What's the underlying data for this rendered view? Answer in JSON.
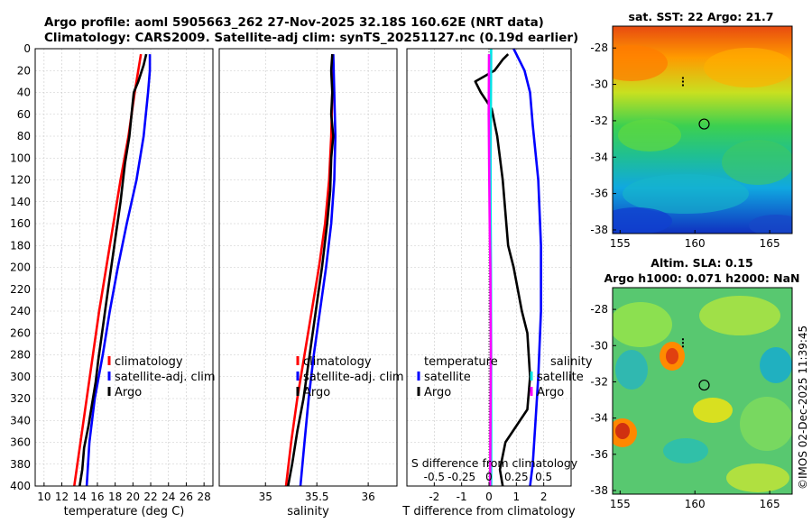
{
  "titles": {
    "line1": "Argo profile: aoml 5905663_262 27-Nov-2025 32.18S 160.62E (NRT data)",
    "line2": "Climatology: CARS2009. Satellite-adj clim: synTS_20251127.nc (0.19d earlier)",
    "sst": "sat. SST: 22 Argo: 21.7",
    "sla1": "Altim. SLA: 0.15",
    "sla2": "Argo h1000: 0.071 h2000: NaN",
    "stamp": "©IMOS 02-Dec-2025 11:39:45"
  },
  "colors": {
    "clim": "#ff0000",
    "sat": "#0000ff",
    "argo": "#000000",
    "tdiff": "#00e5e5",
    "sdiff": "#ff00ff"
  },
  "chart_data": [
    {
      "type": "line",
      "title": "",
      "xlabel": "temperature (deg C)",
      "ylabel": "",
      "xlim": [
        9,
        29
      ],
      "ylim": [
        400,
        0
      ],
      "xticks": [
        "10",
        "12",
        "14",
        "16",
        "18",
        "20",
        "22",
        "24",
        "26",
        "28"
      ],
      "yticks": [
        "0",
        "20",
        "40",
        "60",
        "80",
        "100",
        "120",
        "140",
        "160",
        "180",
        "200",
        "220",
        "240",
        "260",
        "280",
        "300",
        "320",
        "340",
        "360",
        "380",
        "400"
      ],
      "legend": [
        "climatology",
        "satellite-adj. clim",
        "Argo"
      ],
      "series": [
        {
          "name": "climatology",
          "color": "#ff0000",
          "x": [
            20.9,
            20.2,
            19.5,
            18.6,
            17.8,
            17.0,
            16.2,
            15.5,
            14.8,
            14.1,
            13.4
          ],
          "y": [
            5,
            40,
            80,
            120,
            160,
            200,
            240,
            280,
            320,
            360,
            400
          ]
        },
        {
          "name": "satellite-adj. clim",
          "color": "#0000ff",
          "x": [
            21.9,
            21.9,
            21.7,
            21.2,
            20.4,
            19.3,
            18.3,
            17.4,
            16.6,
            15.7,
            15.1,
            14.8
          ],
          "y": [
            5,
            20,
            40,
            80,
            120,
            160,
            200,
            240,
            280,
            320,
            360,
            400
          ]
        },
        {
          "name": "Argo",
          "color": "#000000",
          "x": [
            21.5,
            21.2,
            20.6,
            20.1,
            19.9,
            19.6,
            19.1,
            18.6,
            17.9,
            17.2,
            16.7,
            16.1,
            15.8,
            15.4,
            15.0,
            14.5,
            14.3,
            14.0
          ],
          "y": [
            5,
            15,
            30,
            40,
            55,
            80,
            105,
            140,
            180,
            220,
            250,
            285,
            305,
            325,
            345,
            365,
            385,
            400
          ]
        }
      ]
    },
    {
      "type": "line",
      "xlabel": "salinity",
      "xlim": [
        34.55,
        36.28
      ],
      "ylim": [
        400,
        0
      ],
      "xticks": [
        "35",
        "35.5",
        "36"
      ],
      "legend": [
        "climatology",
        "satellite-adj. clim",
        "Argo"
      ],
      "series": [
        {
          "name": "climatology",
          "color": "#ff0000",
          "x": [
            35.65,
            35.65,
            35.64,
            35.62,
            35.58,
            35.52,
            35.45,
            35.38,
            35.31,
            35.25,
            35.2
          ],
          "y": [
            5,
            40,
            80,
            120,
            160,
            200,
            240,
            280,
            320,
            360,
            400
          ]
        },
        {
          "name": "satellite-adj. clim",
          "color": "#0000ff",
          "x": [
            35.66,
            35.67,
            35.68,
            35.67,
            35.64,
            35.59,
            35.53,
            35.47,
            35.42,
            35.38,
            35.34
          ],
          "y": [
            5,
            40,
            80,
            120,
            160,
            200,
            240,
            280,
            320,
            360,
            400
          ]
        },
        {
          "name": "Argo",
          "color": "#000000",
          "x": [
            35.65,
            35.64,
            35.65,
            35.64,
            35.66,
            35.64,
            35.63,
            35.6,
            35.55,
            35.49,
            35.43,
            35.37,
            35.31,
            35.26,
            35.22
          ],
          "y": [
            5,
            20,
            40,
            60,
            80,
            100,
            130,
            160,
            200,
            240,
            280,
            320,
            350,
            380,
            400
          ]
        }
      ]
    },
    {
      "type": "line",
      "xlabel": "T difference from climatology",
      "xlim": [
        -3,
        3
      ],
      "ylim": [
        400,
        0
      ],
      "xticks": [
        "-2",
        "-1",
        "0",
        "1",
        "2"
      ],
      "top_xlabel": "S difference from climatology",
      "top_xticks": [
        "-0.5",
        "-0.25",
        "0",
        "0.25",
        "0.5"
      ],
      "legend_left_title": "temperature",
      "legend_right_title": "salinity",
      "legend_left": [
        "satellite",
        "Argo"
      ],
      "legend_right": [
        "satellite",
        "Argo"
      ],
      "series": [
        {
          "name": "T satellite",
          "color": "#0000ff",
          "x": [
            0.9,
            1.3,
            1.5,
            1.6,
            1.8,
            1.9,
            1.9,
            1.8,
            1.7,
            1.6,
            1.5
          ],
          "y": [
            0,
            20,
            40,
            70,
            120,
            180,
            240,
            300,
            340,
            380,
            400
          ]
        },
        {
          "name": "T Argo",
          "color": "#000000",
          "x": [
            0.7,
            0.5,
            0.2,
            -0.5,
            -0.3,
            0.1,
            0.3,
            0.5,
            0.6,
            0.7,
            0.9,
            1.2,
            1.4,
            1.5,
            1.4,
            0.6,
            0.4,
            0.5
          ],
          "y": [
            5,
            10,
            20,
            30,
            40,
            55,
            80,
            120,
            150,
            180,
            200,
            240,
            260,
            300,
            330,
            360,
            385,
            400
          ]
        },
        {
          "name": "S satellite",
          "color": "#00e5e5",
          "x": [
            0.08,
            0.07,
            0.06,
            0.06,
            0.07,
            0.08,
            0.08,
            0.08
          ],
          "y": [
            0,
            50,
            100,
            150,
            200,
            280,
            340,
            400
          ]
        },
        {
          "name": "S Argo",
          "color": "#ff00ff",
          "x": [
            0,
            -0.01,
            0.01,
            0.03,
            0.05,
            0.06,
            0.07,
            0.06,
            0.05,
            0.04
          ],
          "y": [
            5,
            60,
            120,
            170,
            200,
            240,
            280,
            320,
            360,
            400
          ]
        }
      ]
    },
    {
      "type": "heatmap",
      "title": "sat. SST: 22 Argo: 21.7",
      "xlim": [
        154.5,
        166.5
      ],
      "ylim": [
        -38.2,
        -26.8
      ],
      "xticks": [
        "155",
        "160",
        "165"
      ],
      "yticks": [
        "-28",
        "-30",
        "-32",
        "-34",
        "-36",
        "-38"
      ],
      "marker": {
        "lon": 160.62,
        "lat": -32.18
      }
    },
    {
      "type": "heatmap",
      "title": "Altim. SLA: 0.15",
      "xlim": [
        154.5,
        166.5
      ],
      "ylim": [
        -38.2,
        -26.8
      ],
      "xticks": [
        "155",
        "160",
        "165"
      ],
      "yticks": [
        "-28",
        "-30",
        "-32",
        "-34",
        "-36",
        "-38"
      ],
      "marker": {
        "lon": 160.62,
        "lat": -32.18
      }
    }
  ]
}
